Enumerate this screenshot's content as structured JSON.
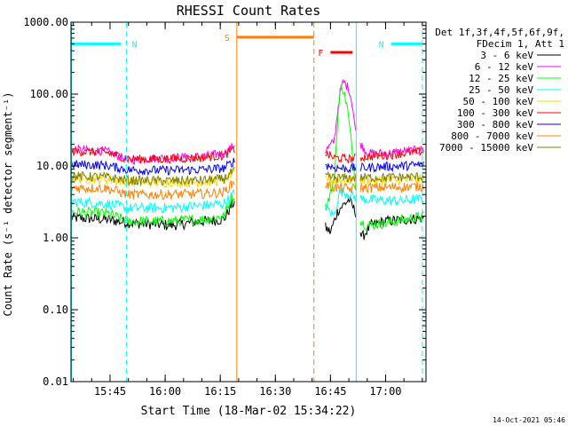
{
  "chart_data": {
    "type": "line",
    "title": "RHESSI Count Rates",
    "xlabel": "Start Time (18-Mar-02 15:34:22)",
    "ylabel": "Count Rate (s⁻¹ detector segment⁻¹)",
    "yscale": "log",
    "ylim": [
      0.01,
      1000
    ],
    "xlim": [
      "15:34:22",
      "17:11:00"
    ],
    "x_ticks": [
      "15:45",
      "16:00",
      "16:15",
      "16:30",
      "16:45",
      "17:00"
    ],
    "y_ticks": [
      "0.01",
      "0.10",
      "1.00",
      "10.00",
      "100.00",
      "1000.00"
    ],
    "legend_header": [
      "Det 1f,3f,4f,5f,6f,9f,",
      "FDecim 1, Att 1"
    ],
    "legend_position": "right-outside",
    "timestamp": "14-Oct-2021 05:46",
    "gaps": [
      [
        "16:19:00",
        "16:43:30"
      ],
      [
        "16:52:00",
        "16:53:00"
      ]
    ],
    "series": [
      {
        "name": "3 - 6 keV",
        "color": "#000000",
        "points": [
          [
            "15:34:22",
            1.9
          ],
          [
            "15:44:00",
            1.8
          ],
          [
            "15:51:00",
            1.6
          ],
          [
            "16:02:00",
            1.5
          ],
          [
            "16:10:00",
            1.7
          ],
          [
            "16:16:00",
            1.8
          ],
          [
            "16:18:00",
            2.8
          ],
          [
            "16:19:00",
            3.2
          ],
          [
            "16:43:30",
            1.4
          ],
          [
            "16:45:00",
            1.2
          ],
          [
            "16:47:00",
            2.4
          ],
          [
            "16:50:00",
            3.4
          ],
          [
            "16:52:00",
            2.2
          ],
          [
            "16:53:30",
            1.0
          ],
          [
            "16:56:00",
            1.5
          ],
          [
            "17:00:00",
            1.7
          ],
          [
            "17:06:00",
            1.8
          ],
          [
            "17:10:30",
            1.9
          ]
        ]
      },
      {
        "name": "6 - 12 keV",
        "color": "#ff00ff",
        "points": [
          [
            "15:34:22",
            17
          ],
          [
            "15:44:00",
            16
          ],
          [
            "15:50:00",
            12
          ],
          [
            "16:00:00",
            13
          ],
          [
            "16:10:00",
            13.5
          ],
          [
            "16:16:00",
            15
          ],
          [
            "16:18:00",
            18
          ],
          [
            "16:19:00",
            20
          ],
          [
            "16:43:30",
            16
          ],
          [
            "16:46:00",
            22
          ],
          [
            "16:47:30",
            100
          ],
          [
            "16:48:30",
            150
          ],
          [
            "16:50:00",
            120
          ],
          [
            "16:51:00",
            70
          ],
          [
            "16:52:00",
            25
          ],
          [
            "16:55:00",
            15
          ],
          [
            "17:00:00",
            15
          ],
          [
            "17:05:00",
            16
          ],
          [
            "17:10:30",
            17
          ]
        ]
      },
      {
        "name": "12 - 25 keV",
        "color": "#00ff00",
        "points": [
          [
            "15:34:22",
            2.3
          ],
          [
            "15:44:00",
            2.2
          ],
          [
            "15:50:00",
            1.7
          ],
          [
            "16:00:00",
            1.7
          ],
          [
            "16:10:00",
            1.8
          ],
          [
            "16:16:00",
            2.0
          ],
          [
            "16:18:00",
            3.5
          ],
          [
            "16:19:00",
            4.0
          ],
          [
            "16:43:30",
            2.5
          ],
          [
            "16:46:00",
            6
          ],
          [
            "16:47:00",
            50
          ],
          [
            "16:48:00",
            140
          ],
          [
            "16:49:30",
            70
          ],
          [
            "16:50:30",
            25
          ],
          [
            "16:51:30",
            8
          ],
          [
            "16:53:00",
            1.7
          ],
          [
            "16:55:00",
            1.5
          ],
          [
            "17:00:00",
            1.6
          ],
          [
            "17:05:00",
            1.8
          ],
          [
            "17:10:30",
            2.0
          ]
        ]
      },
      {
        "name": "25 - 50 keV",
        "color": "#00ffff",
        "points": [
          [
            "15:34:22",
            3.2
          ],
          [
            "15:44:00",
            3.0
          ],
          [
            "15:50:00",
            2.6
          ],
          [
            "16:00:00",
            2.6
          ],
          [
            "16:10:00",
            2.8
          ],
          [
            "16:16:00",
            3.0
          ],
          [
            "16:18:00",
            3.8
          ],
          [
            "16:19:00",
            4.2
          ],
          [
            "16:43:30",
            2.8
          ],
          [
            "16:46:00",
            2.0
          ],
          [
            "16:47:30",
            4.5
          ],
          [
            "16:50:00",
            4.0
          ],
          [
            "16:52:00",
            3.6
          ],
          [
            "16:55:00",
            3.4
          ],
          [
            "17:00:00",
            3.3
          ],
          [
            "17:05:00",
            3.3
          ],
          [
            "17:10:30",
            3.5
          ]
        ]
      },
      {
        "name": "50 - 100 keV",
        "color": "#ffd700",
        "points": [
          [
            "15:34:22",
            6.7
          ],
          [
            "15:44:00",
            6.6
          ],
          [
            "15:50:00",
            5.9
          ],
          [
            "16:00:00",
            5.9
          ],
          [
            "16:10:00",
            6.0
          ],
          [
            "16:16:00",
            6.3
          ],
          [
            "16:18:00",
            7.5
          ],
          [
            "16:19:00",
            8
          ],
          [
            "16:43:30",
            6.8
          ],
          [
            "16:46:00",
            6.2
          ],
          [
            "16:50:00",
            6.4
          ],
          [
            "16:55:00",
            6.3
          ],
          [
            "17:00:00",
            6.3
          ],
          [
            "17:05:00",
            6.4
          ],
          [
            "17:10:30",
            6.5
          ]
        ]
      },
      {
        "name": "100 - 300 keV",
        "color": "#ff0000",
        "points": [
          [
            "15:34:22",
            16
          ],
          [
            "15:44:00",
            15.5
          ],
          [
            "15:50:00",
            12.5
          ],
          [
            "16:00:00",
            12.5
          ],
          [
            "16:10:00",
            13
          ],
          [
            "16:16:00",
            14
          ],
          [
            "16:18:00",
            16
          ],
          [
            "16:19:00",
            17
          ],
          [
            "16:43:30",
            15
          ],
          [
            "16:46:00",
            13
          ],
          [
            "16:50:00",
            12.5
          ],
          [
            "16:55:00",
            13.5
          ],
          [
            "17:00:00",
            14
          ],
          [
            "17:05:00",
            15
          ],
          [
            "17:10:30",
            16
          ]
        ]
      },
      {
        "name": "300 - 800 keV",
        "color": "#0000ff",
        "points": [
          [
            "15:34:22",
            10.5
          ],
          [
            "15:44:00",
            10.2
          ],
          [
            "15:50:00",
            8.8
          ],
          [
            "16:00:00",
            8.7
          ],
          [
            "16:10:00",
            8.9
          ],
          [
            "16:16:00",
            9.3
          ],
          [
            "16:18:00",
            11
          ],
          [
            "16:19:00",
            12
          ],
          [
            "16:43:30",
            10.5
          ],
          [
            "16:46:00",
            9.5
          ],
          [
            "16:50:00",
            9.2
          ],
          [
            "16:55:00",
            9.5
          ],
          [
            "17:00:00",
            9.8
          ],
          [
            "17:05:00",
            10
          ],
          [
            "17:10:30",
            10.5
          ]
        ]
      },
      {
        "name": "800 - 7000 keV",
        "color": "#ff8000",
        "points": [
          [
            "15:34:22",
            5.0
          ],
          [
            "15:44:00",
            4.9
          ],
          [
            "15:50:00",
            4.0
          ],
          [
            "16:00:00",
            4.0
          ],
          [
            "16:10:00",
            4.1
          ],
          [
            "16:16:00",
            4.3
          ],
          [
            "16:18:00",
            5.5
          ],
          [
            "16:19:00",
            6
          ],
          [
            "16:43:30",
            5.5
          ],
          [
            "16:46:00",
            5.0
          ],
          [
            "16:50:00",
            4.8
          ],
          [
            "16:55:00",
            5.0
          ],
          [
            "17:00:00",
            5.0
          ],
          [
            "17:05:00",
            5.1
          ],
          [
            "17:10:30",
            5.2
          ]
        ]
      },
      {
        "name": "7000 - 15000 keV",
        "color": "#808000",
        "points": [
          [
            "15:34:22",
            7.2
          ],
          [
            "15:44:00",
            7.0
          ],
          [
            "15:50:00",
            6.3
          ],
          [
            "16:00:00",
            6.2
          ],
          [
            "16:10:00",
            6.3
          ],
          [
            "16:16:00",
            6.6
          ],
          [
            "16:18:00",
            8
          ],
          [
            "16:19:00",
            8.5
          ],
          [
            "16:43:30",
            7.2
          ],
          [
            "16:46:00",
            6.8
          ],
          [
            "16:50:00",
            6.8
          ],
          [
            "16:55:00",
            6.9
          ],
          [
            "17:00:00",
            6.9
          ],
          [
            "17:05:00",
            7.0
          ],
          [
            "17:10:30",
            7.1
          ]
        ]
      }
    ],
    "annotations": [
      {
        "label": "N",
        "color": "#00ffff",
        "line_style": "dashed",
        "x_line": "15:49:30",
        "bar": [
          "15:34:22",
          "15:48:00"
        ],
        "bar_y": 500
      },
      {
        "label": "N",
        "color": "#00ffff",
        "line_style": "dashed",
        "x_line": "17:10:00",
        "bar": [
          "17:01:30",
          "17:10:00"
        ],
        "bar_y": 500
      },
      {
        "label": "S",
        "color": "#ff8000",
        "line_style": "solid",
        "x_line": "16:19:30",
        "bar": [
          "16:19:30",
          "16:40:30"
        ],
        "bar_y": 620
      },
      {
        "label": "S",
        "color": "#ff8000",
        "line_style": "dashed",
        "x_line": "16:40:30"
      },
      {
        "label": "F",
        "color": "#ff0000",
        "line_style": "none",
        "bar": [
          "16:45:00",
          "16:51:00"
        ],
        "bar_y": 380
      },
      {
        "label": "",
        "color": "#00ffff",
        "line_style": "solid",
        "x_line": "16:52:00"
      },
      {
        "label": "",
        "color": "#00ffff",
        "line_style": "solid",
        "x_line": "15:34:30"
      }
    ]
  }
}
